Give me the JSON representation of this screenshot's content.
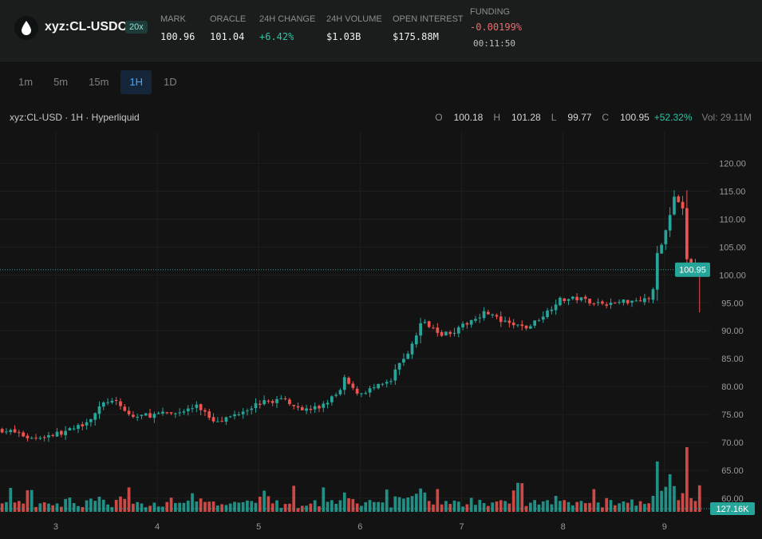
{
  "header": {
    "pair": "xyz:CL-USDC",
    "leverage": "20x",
    "stats": [
      {
        "label": "MARK",
        "value": "100.96",
        "tone": "neutral"
      },
      {
        "label": "ORACLE",
        "value": "101.04",
        "tone": "neutral"
      },
      {
        "label": "24H CHANGE",
        "value": "+6.42%",
        "tone": "pos"
      },
      {
        "label": "24H VOLUME",
        "value": "$1.03B",
        "tone": "neutral"
      },
      {
        "label": "OPEN INTEREST",
        "value": "$175.88M",
        "tone": "neutral"
      }
    ],
    "funding": {
      "label": "FUNDING",
      "value": "-0.00199%",
      "timer": "00:11:50"
    }
  },
  "timeframes": {
    "options": [
      "1m",
      "5m",
      "15m",
      "1H",
      "1D"
    ],
    "active": "1H"
  },
  "legend": {
    "symbol": "xyz:CL-USD · 1H · Hyperliquid",
    "o_key": "O",
    "o": "100.18",
    "h_key": "H",
    "h": "101.28",
    "l_key": "L",
    "l": "99.77",
    "c_key": "C",
    "c": "100.95",
    "change": "+52.32%",
    "volume": "Vol: 29.11M"
  },
  "colors": {
    "up": "#26a69a",
    "down": "#ef5350",
    "background": "#131313",
    "grid": "#1e1e1e",
    "price_label_bg": "#26a69a",
    "volume_label_bg": "#26a69a"
  },
  "chart_data": {
    "type": "candlestick",
    "title": "",
    "xlabel": "",
    "ylabel": "",
    "y_ticks": [
      "120.00",
      "115.00",
      "110.00",
      "105.00",
      "100.00",
      "95.00",
      "90.00",
      "85.00",
      "80.00",
      "75.00",
      "70.00",
      "65.00",
      "60.00"
    ],
    "ylim": [
      57.7,
      122.8
    ],
    "x_ticks": [
      {
        "label": "3",
        "day": 3
      },
      {
        "label": "4",
        "day": 4
      },
      {
        "label": "5",
        "day": 5
      },
      {
        "label": "6",
        "day": 6
      },
      {
        "label": "7",
        "day": 7
      },
      {
        "label": "8",
        "day": 8
      },
      {
        "label": "9",
        "day": 9
      }
    ],
    "x_start_day": 2.45,
    "x_end_day": 9.45,
    "bars_per_day": 24,
    "close_path": [
      [
        2.45,
        72.3
      ],
      [
        2.6,
        71.8
      ],
      [
        2.75,
        70.7
      ],
      [
        3.0,
        71.5
      ],
      [
        3.2,
        72.5
      ],
      [
        3.35,
        74.5
      ],
      [
        3.5,
        77.5
      ],
      [
        3.6,
        77.0
      ],
      [
        3.75,
        74.5
      ],
      [
        3.85,
        74.8
      ],
      [
        4.0,
        75.0
      ],
      [
        4.2,
        75.3
      ],
      [
        4.4,
        76.5
      ],
      [
        4.55,
        74.0
      ],
      [
        4.7,
        74.4
      ],
      [
        4.85,
        75.8
      ],
      [
        5.0,
        77.0
      ],
      [
        5.25,
        77.8
      ],
      [
        5.45,
        75.8
      ],
      [
        5.6,
        76.3
      ],
      [
        5.8,
        79.0
      ],
      [
        5.85,
        81.5
      ],
      [
        5.92,
        79.5
      ],
      [
        6.0,
        78.8
      ],
      [
        6.1,
        79.5
      ],
      [
        6.3,
        80.8
      ],
      [
        6.38,
        84.0
      ],
      [
        6.5,
        86.8
      ],
      [
        6.6,
        91.5
      ],
      [
        6.7,
        91.0
      ],
      [
        6.8,
        89.5
      ],
      [
        6.95,
        90.0
      ],
      [
        7.1,
        92.0
      ],
      [
        7.25,
        93.5
      ],
      [
        7.4,
        91.5
      ],
      [
        7.65,
        90.5
      ],
      [
        7.85,
        93.5
      ],
      [
        7.95,
        95.5
      ],
      [
        8.15,
        95.8
      ],
      [
        8.3,
        95.2
      ],
      [
        8.45,
        94.8
      ],
      [
        8.6,
        95.3
      ],
      [
        8.88,
        95.9
      ],
      [
        8.93,
        104.0
      ],
      [
        9.0,
        107.0
      ],
      [
        9.1,
        114.0
      ],
      [
        9.18,
        111.5
      ],
      [
        9.22,
        103.0
      ],
      [
        9.28,
        101.5
      ],
      [
        9.35,
        100.95
      ]
    ],
    "last_price": 100.95,
    "last_volume_label": "127.16K",
    "volume_max": 70
  }
}
